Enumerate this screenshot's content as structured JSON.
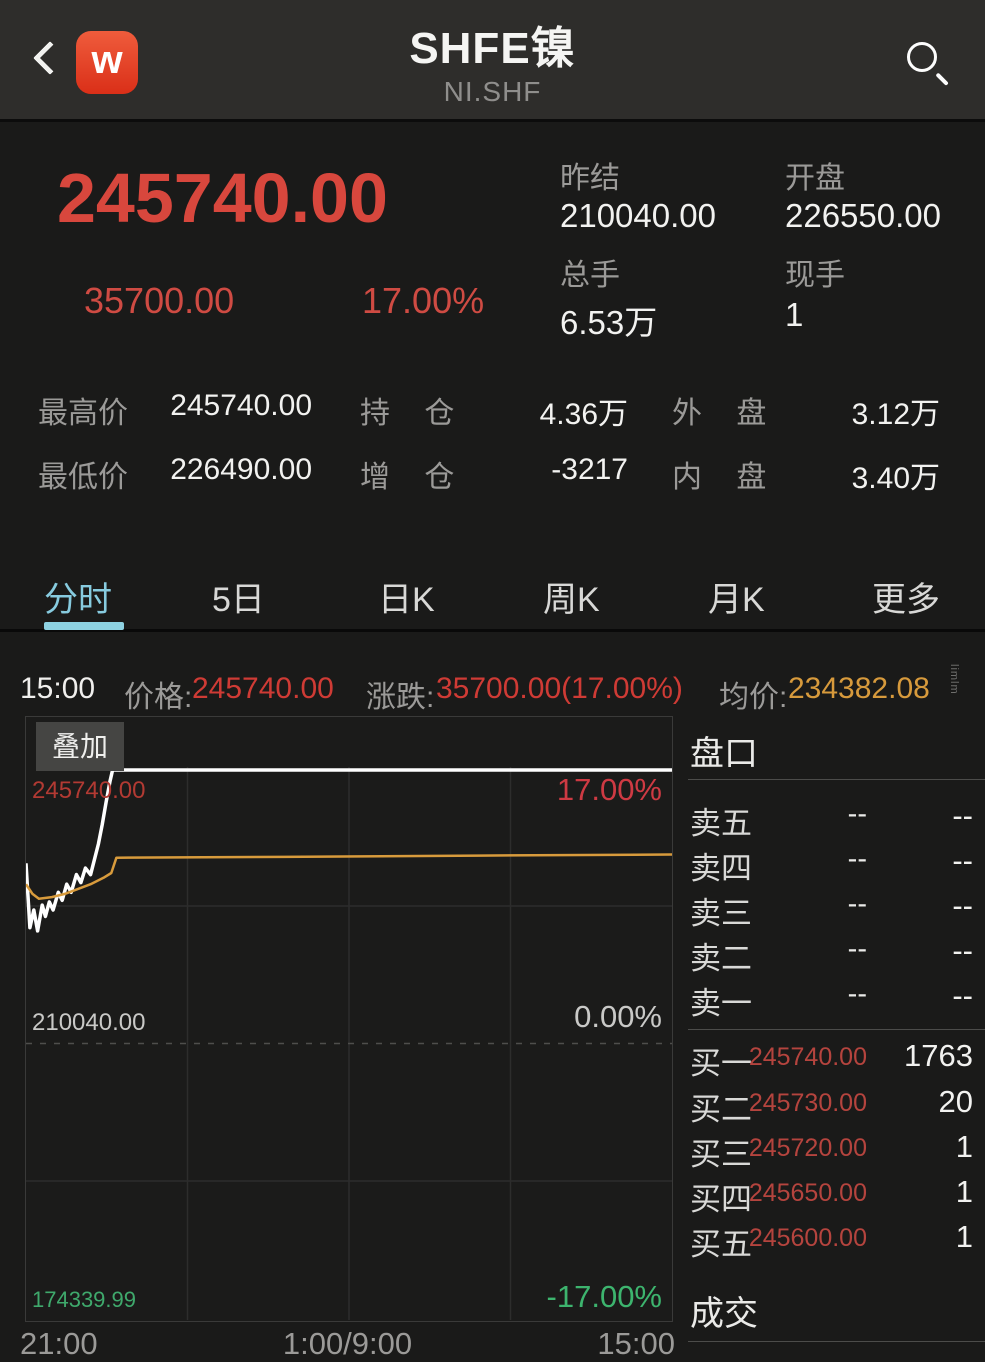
{
  "header": {
    "title": "SHFE镍",
    "subtitle": "NI.SHF",
    "logo": "w"
  },
  "quote": {
    "last": "245740.00",
    "change": "35700.00",
    "change_pct": "17.00%",
    "prev_settle_label": "昨结",
    "prev_settle": "210040.00",
    "open_label": "开盘",
    "open": "226550.00",
    "volume_label": "总手",
    "volume": "6.53万",
    "cur_vol_label": "现手",
    "cur_vol": "1"
  },
  "stats": [
    {
      "label": "最高价",
      "value": "245740.00"
    },
    {
      "label": "持 仓",
      "value": "4.36万"
    },
    {
      "label": "外 盘",
      "value": "3.12万"
    },
    {
      "label": "最低价",
      "value": "226490.00"
    },
    {
      "label": "增 仓",
      "value": "-3217"
    },
    {
      "label": "内 盘",
      "value": "3.40万"
    }
  ],
  "tabs": [
    {
      "label": "分时",
      "active": true
    },
    {
      "label": "5日",
      "active": false
    },
    {
      "label": "日K",
      "active": false
    },
    {
      "label": "周K",
      "active": false
    },
    {
      "label": "月K",
      "active": false
    },
    {
      "label": "更多",
      "active": false
    }
  ],
  "info_bar": {
    "time": "15:00",
    "price_label": "价格:",
    "price": "245740.00",
    "change_label": "涨跌:",
    "change": "35700.00(17.00%)",
    "avg_label": "均价:",
    "avg": "234382.08",
    "watermark": "limlm"
  },
  "chart_data": {
    "type": "line",
    "overlay_button": "叠加",
    "x_ticks": [
      "21:00",
      "1:00/9:00",
      "15:00"
    ],
    "left_labels": {
      "high": "245740.00",
      "mid": "210040.00",
      "low": "174339.99"
    },
    "right_labels": {
      "high": "17.00%",
      "mid": "0.00%",
      "low": "-17.00%"
    },
    "ylim_pct": [
      -17,
      17
    ],
    "prev_close": 210040.0,
    "grid": {
      "v_fractions": [
        0.25,
        0.5,
        0.75
      ],
      "h_pct_solid": [
        8.5,
        -8.5
      ],
      "h_pct_dashed": [
        0
      ]
    },
    "series": [
      {
        "name": "price",
        "color": "#ffffff",
        "width": 3.5,
        "points": [
          [
            0.0,
            11.2
          ],
          [
            0.006,
            7.2
          ],
          [
            0.012,
            8.3
          ],
          [
            0.018,
            7.0
          ],
          [
            0.025,
            8.6
          ],
          [
            0.03,
            7.9
          ],
          [
            0.036,
            8.8
          ],
          [
            0.042,
            8.3
          ],
          [
            0.05,
            9.4
          ],
          [
            0.056,
            8.9
          ],
          [
            0.063,
            9.9
          ],
          [
            0.07,
            9.4
          ],
          [
            0.078,
            10.5
          ],
          [
            0.085,
            10.0
          ],
          [
            0.092,
            10.9
          ],
          [
            0.1,
            10.5
          ],
          [
            0.107,
            11.6
          ],
          [
            0.112,
            12.4
          ],
          [
            0.118,
            13.6
          ],
          [
            0.124,
            15.0
          ],
          [
            0.13,
            16.3
          ],
          [
            0.134,
            17.0
          ],
          [
            1.0,
            17.0
          ]
        ]
      },
      {
        "name": "average",
        "color": "#d89b3c",
        "width": 2.5,
        "points": [
          [
            0.0,
            9.9
          ],
          [
            0.01,
            9.3
          ],
          [
            0.02,
            9.0
          ],
          [
            0.04,
            9.1
          ],
          [
            0.06,
            9.3
          ],
          [
            0.08,
            9.6
          ],
          [
            0.1,
            9.9
          ],
          [
            0.12,
            10.3
          ],
          [
            0.132,
            10.6
          ],
          [
            0.14,
            11.55
          ],
          [
            0.4,
            11.6
          ],
          [
            0.7,
            11.68
          ],
          [
            1.0,
            11.75
          ]
        ]
      }
    ]
  },
  "order_book": {
    "title": "盘口",
    "sells": [
      {
        "label": "卖五",
        "price": "--",
        "vol": "--"
      },
      {
        "label": "卖四",
        "price": "--",
        "vol": "--"
      },
      {
        "label": "卖三",
        "price": "--",
        "vol": "--"
      },
      {
        "label": "卖二",
        "price": "--",
        "vol": "--"
      },
      {
        "label": "卖一",
        "price": "--",
        "vol": "--"
      }
    ],
    "buys": [
      {
        "label": "买一",
        "price": "245740.00",
        "vol": "1763"
      },
      {
        "label": "买二",
        "price": "245730.00",
        "vol": "20"
      },
      {
        "label": "买三",
        "price": "245720.00",
        "vol": "1"
      },
      {
        "label": "买四",
        "price": "245650.00",
        "vol": "1"
      },
      {
        "label": "买五",
        "price": "245600.00",
        "vol": "1"
      }
    ],
    "trades_title": "成交"
  },
  "colors": {
    "up_red": "#d8473d",
    "muted_red": "#b5443e",
    "orange": "#d79a3c",
    "green": "#3db46e",
    "tab_active": "#87cbdf",
    "bg": "#1a1a19",
    "header_bg": "#2e2d2b"
  }
}
